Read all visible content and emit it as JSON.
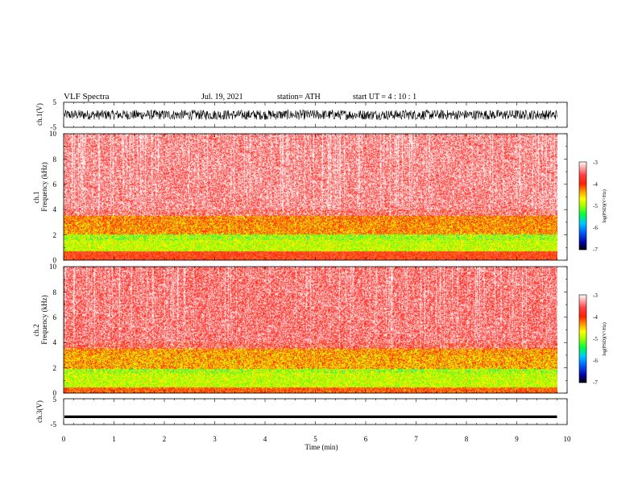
{
  "header": {
    "title": "VLF  Spectra",
    "date": "Jul.  19,  2021",
    "station": "station= ATH",
    "start": "start  UT  =   4  : 10 : 1"
  },
  "colors": {
    "spectro_colormap": [
      "#000000",
      "#0000a0",
      "#0060ff",
      "#00c8ff",
      "#00ff40",
      "#a0ff00",
      "#ffff00",
      "#ffa000",
      "#ff2000",
      "#ff4040",
      "#ffb0b0",
      "#ffffff"
    ],
    "trace": "#000000"
  },
  "chart_data": [
    {
      "type": "line",
      "name": "ch1-waveform",
      "ylabel": "ch.1(V)",
      "yticks": [
        "5",
        "-5"
      ],
      "ylim": [
        -5,
        5
      ],
      "xlim": [
        0,
        10
      ],
      "series": [
        {
          "values_range": [
            -2,
            2
          ],
          "duration_min": 9.8
        }
      ]
    },
    {
      "type": "heatmap",
      "name": "ch1-spectrogram",
      "ylabel_line1": "ch.1",
      "ylabel_line2": "Frequency  (kHz)",
      "yticks": [
        "10",
        "8",
        "6",
        "4",
        "2",
        "0"
      ],
      "ylim": [
        0,
        10
      ],
      "xlim": [
        0,
        10
      ],
      "colorbar": {
        "label": "log(PSD)(V²/Hz)",
        "ticks": [
          "-3",
          "-4",
          "-5",
          "-6",
          "-7"
        ],
        "range": [
          -7,
          -3
        ]
      },
      "bands": [
        {
          "f_range": [
            0,
            0.7
          ],
          "log_psd": -4.0,
          "note": "red/orange lines"
        },
        {
          "f_range": [
            0.7,
            2.0
          ],
          "log_psd": -5.0,
          "note": "green band"
        },
        {
          "f_range": [
            2.0,
            3.5
          ],
          "log_psd": -4.3,
          "note": "yellow-red"
        },
        {
          "f_range": [
            3.5,
            10
          ],
          "log_psd": -3.5,
          "note": "red to pink"
        }
      ],
      "duration_min": 9.8
    },
    {
      "type": "heatmap",
      "name": "ch2-spectrogram",
      "ylabel_line1": "ch.2",
      "ylabel_line2": "Frequency  (kHz)",
      "yticks": [
        "10",
        "8",
        "6",
        "4",
        "2",
        "0"
      ],
      "ylim": [
        0,
        10
      ],
      "xlim": [
        0,
        10
      ],
      "colorbar": {
        "label": "log(PSD)(V²/Hz)",
        "ticks": [
          "-3",
          "-4",
          "-5",
          "-6",
          "-7"
        ],
        "range": [
          -7,
          -3
        ]
      },
      "bands": [
        {
          "f_range": [
            0,
            0.4
          ],
          "log_psd": -4.2,
          "note": "yellow/red"
        },
        {
          "f_range": [
            0.4,
            1.9
          ],
          "log_psd": -5.0,
          "note": "green band"
        },
        {
          "f_range": [
            1.9,
            3.5
          ],
          "log_psd": -4.4,
          "note": "yellow-red"
        },
        {
          "f_range": [
            3.5,
            10
          ],
          "log_psd": -3.6,
          "note": "red to pink"
        }
      ],
      "duration_min": 9.8
    },
    {
      "type": "line",
      "name": "ch3-waveform",
      "ylabel": "ch.3(V)",
      "yticks": [
        "5",
        "-5"
      ],
      "ylim": [
        -5,
        5
      ],
      "xlim": [
        0,
        10
      ],
      "series": [
        {
          "level": -2,
          "duration_min": 9.8
        }
      ]
    }
  ],
  "xaxis": {
    "label": "Time  (min)",
    "ticks": [
      "0",
      "1",
      "2",
      "3",
      "4",
      "5",
      "6",
      "7",
      "8",
      "9",
      "10"
    ],
    "xlim": [
      0,
      10
    ]
  }
}
